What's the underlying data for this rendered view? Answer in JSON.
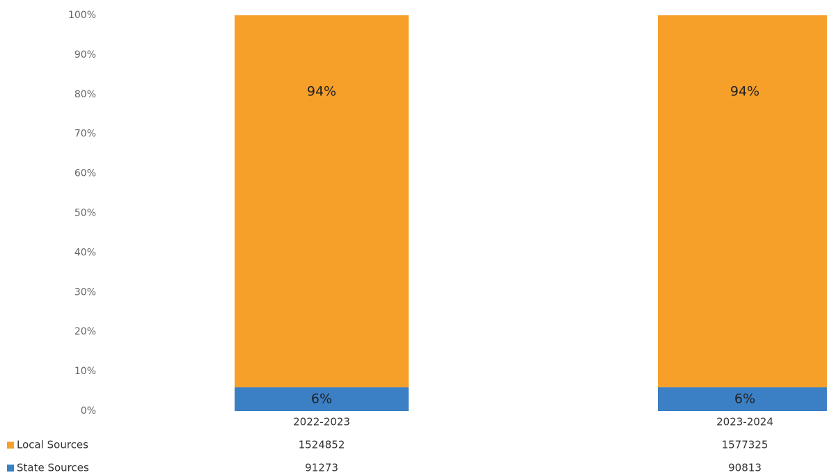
{
  "chart_data": {
    "type": "bar",
    "stacked": true,
    "categories": [
      "2022-2023",
      "2023-2024"
    ],
    "series": [
      {
        "name": "State Sources",
        "color": "#3b7fc4",
        "values": [
          6,
          6
        ],
        "value_labels": [
          "6%",
          "6%"
        ],
        "table_values": [
          91273,
          90813
        ]
      },
      {
        "name": "Local Sources",
        "color": "#f6a02a",
        "values": [
          94,
          94
        ],
        "value_labels": [
          "94%",
          "94%"
        ],
        "table_values": [
          1524852,
          1577325
        ]
      }
    ],
    "table_order": [
      1,
      0
    ],
    "ylim": [
      0,
      100
    ],
    "yticks": [
      {
        "value": 0,
        "label": "0%"
      },
      {
        "value": 10,
        "label": "10%"
      },
      {
        "value": 20,
        "label": "20%"
      },
      {
        "value": 30,
        "label": "30%"
      },
      {
        "value": 40,
        "label": "40%"
      },
      {
        "value": 50,
        "label": "50%"
      },
      {
        "value": 60,
        "label": "60%"
      },
      {
        "value": 70,
        "label": "70%"
      },
      {
        "value": 80,
        "label": "80%"
      },
      {
        "value": 90,
        "label": "90%"
      },
      {
        "value": 100,
        "label": "100%"
      }
    ],
    "grid": false
  }
}
